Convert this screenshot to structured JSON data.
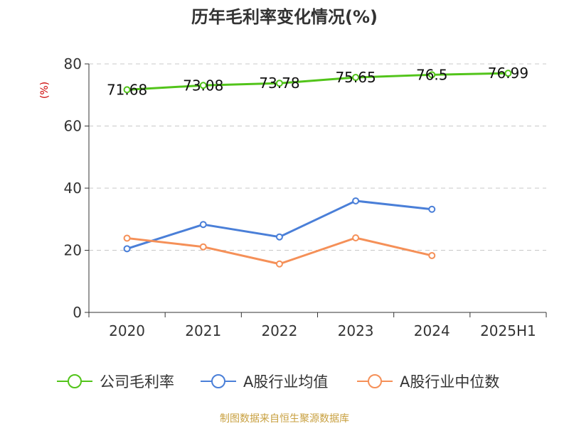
{
  "chart_data": {
    "type": "line",
    "title": "历年毛利率变化情况(%)",
    "unit_label": "(%)",
    "categories": [
      "2020",
      "2021",
      "2022",
      "2023",
      "2024",
      "2025H1"
    ],
    "ylim": [
      0,
      80
    ],
    "yticks": [
      0,
      20,
      40,
      60,
      80
    ],
    "grid": true,
    "legend_position": "bottom",
    "series": [
      {
        "name": "公司毛利率",
        "color": "#52c41a",
        "values": [
          71.68,
          73.08,
          73.78,
          75.65,
          76.5,
          76.99
        ],
        "labels": [
          "71.68",
          "73.08",
          "73.78",
          "75.65",
          "76.5",
          "76.99"
        ]
      },
      {
        "name": "A股行业均值",
        "color": "#4a7fd8",
        "values": [
          20.5,
          28.3,
          24.3,
          35.9,
          33.2,
          null
        ]
      },
      {
        "name": "A股行业中位数",
        "color": "#f59058",
        "values": [
          23.9,
          21.1,
          15.6,
          24.0,
          18.3,
          null
        ]
      }
    ]
  },
  "source": "制图数据来自恒生聚源数据库"
}
